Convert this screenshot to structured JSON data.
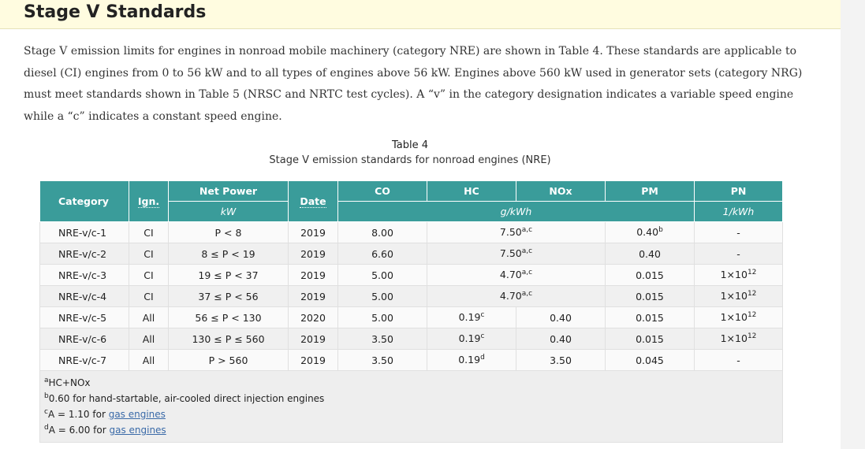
{
  "heading": "Stage V Standards",
  "intro": "Stage V emission limits for engines in nonroad mobile machinery (category NRE) are shown in Table 4. These standards are applicable to diesel (CI) engines from 0 to 56 kW and to all types of engines above 56 kW. Engines above 560 kW used in generator sets (category NRG) must meet standards shown in Table 5 (NRSC and NRTC test cycles). A “v” in the category designation indicates a variable speed engine while a “c” indicates a constant speed engine.",
  "table": {
    "caption_title": "Table 4",
    "caption_subtitle": "Stage V emission standards for nonroad engines (NRE)",
    "headers": {
      "category": "Category",
      "ign": "Ign.",
      "net_power": "Net Power",
      "date": "Date",
      "co": "CO",
      "hc": "HC",
      "nox": "NOx",
      "pm": "PM",
      "pn": "PN"
    },
    "units": {
      "power": "kW",
      "mass": "g/kWh",
      "pn": "1/kWh"
    },
    "rows": [
      {
        "category": "NRE-v/c-1",
        "ign": "CI",
        "power": "P < 8",
        "date": "2019",
        "co": "8.00",
        "hcnox": "7.50",
        "hcnox_sup": "a,c",
        "pm": "0.40",
        "pm_sup": "b",
        "pn": "-"
      },
      {
        "category": "NRE-v/c-2",
        "ign": "CI",
        "power": "8 ≤ P < 19",
        "date": "2019",
        "co": "6.60",
        "hcnox": "7.50",
        "hcnox_sup": "a,c",
        "pm": "0.40",
        "pm_sup": "",
        "pn": "-"
      },
      {
        "category": "NRE-v/c-3",
        "ign": "CI",
        "power": "19 ≤ P < 37",
        "date": "2019",
        "co": "5.00",
        "hcnox": "4.70",
        "hcnox_sup": "a,c",
        "pm": "0.015",
        "pm_sup": "",
        "pn": "1×10",
        "pn_sup": "12"
      },
      {
        "category": "NRE-v/c-4",
        "ign": "CI",
        "power": "37 ≤ P < 56",
        "date": "2019",
        "co": "5.00",
        "hcnox": "4.70",
        "hcnox_sup": "a,c",
        "pm": "0.015",
        "pm_sup": "",
        "pn": "1×10",
        "pn_sup": "12"
      },
      {
        "category": "NRE-v/c-5",
        "ign": "All",
        "power": "56 ≤ P < 130",
        "date": "2020",
        "co": "5.00",
        "hc": "0.19",
        "hc_sup": "c",
        "nox": "0.40",
        "pm": "0.015",
        "pm_sup": "",
        "pn": "1×10",
        "pn_sup": "12"
      },
      {
        "category": "NRE-v/c-6",
        "ign": "All",
        "power": "130 ≤ P ≤ 560",
        "date": "2019",
        "co": "3.50",
        "hc": "0.19",
        "hc_sup": "c",
        "nox": "0.40",
        "pm": "0.015",
        "pm_sup": "",
        "pn": "1×10",
        "pn_sup": "12"
      },
      {
        "category": "NRE-v/c-7",
        "ign": "All",
        "power": "P > 560",
        "date": "2019",
        "co": "3.50",
        "hc": "0.19",
        "hc_sup": "d",
        "nox": "3.50",
        "pm": "0.045",
        "pm_sup": "",
        "pn": "-"
      }
    ],
    "notes": [
      {
        "mark": "a",
        "text": "HC+NOx",
        "link": ""
      },
      {
        "mark": "b",
        "text": "0.60 for hand-startable, air-cooled direct injection engines",
        "link": ""
      },
      {
        "mark": "c",
        "text": "A = 1.10 for ",
        "link": "gas engines"
      },
      {
        "mark": "d",
        "text": "A = 6.00 for ",
        "link": "gas engines"
      }
    ]
  }
}
